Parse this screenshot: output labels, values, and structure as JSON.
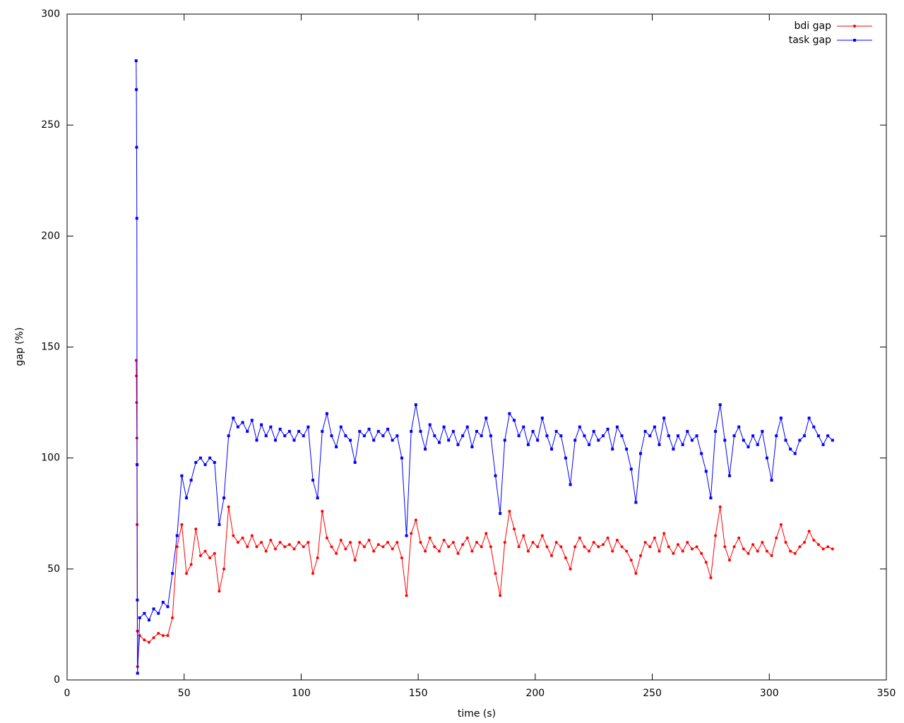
{
  "chart_data": {
    "type": "line",
    "xlabel": "time (s)",
    "ylabel": "gap (%)",
    "x": [
      29.5,
      29.6,
      29.7,
      29.8,
      29.9,
      30,
      30.1,
      31,
      33,
      35,
      37,
      39,
      41,
      43,
      45,
      47,
      49,
      51,
      53,
      55,
      57,
      59,
      61,
      63,
      65,
      67,
      69,
      71,
      73,
      75,
      77,
      79,
      81,
      83,
      85,
      87,
      89,
      91,
      93,
      95,
      97,
      99,
      101,
      103,
      105,
      107,
      109,
      111,
      113,
      115,
      117,
      119,
      121,
      123,
      125,
      127,
      129,
      131,
      133,
      135,
      137,
      139,
      141,
      143,
      145,
      147,
      149,
      151,
      153,
      155,
      157,
      159,
      161,
      163,
      165,
      167,
      169,
      171,
      173,
      175,
      177,
      179,
      181,
      183,
      185,
      187,
      189,
      191,
      193,
      195,
      197,
      199,
      201,
      203,
      205,
      207,
      209,
      211,
      213,
      215,
      217,
      219,
      221,
      223,
      225,
      227,
      229,
      231,
      233,
      235,
      237,
      239,
      241,
      243,
      245,
      247,
      249,
      251,
      253,
      255,
      257,
      259,
      261,
      263,
      265,
      267,
      269,
      271,
      273,
      275,
      277,
      279,
      281,
      283,
      285,
      287,
      289,
      291,
      293,
      295,
      297,
      299,
      301,
      303,
      305,
      307,
      309,
      311,
      313,
      315,
      317,
      319,
      321,
      323,
      325,
      327
    ],
    "series": [
      {
        "name": "bdi gap",
        "color": "#ff0000",
        "marker": "circle",
        "values": [
          144,
          137,
          125,
          109,
          70,
          22,
          6,
          20,
          18,
          17,
          19,
          21,
          20,
          20,
          28,
          60,
          70,
          48,
          52,
          68,
          56,
          58,
          55,
          57,
          40,
          50,
          78,
          65,
          62,
          64,
          60,
          65,
          60,
          62,
          58,
          63,
          59,
          62,
          60,
          61,
          59,
          62,
          60,
          62,
          48,
          55,
          76,
          64,
          60,
          57,
          63,
          59,
          62,
          54,
          62,
          60,
          63,
          58,
          61,
          60,
          62,
          59,
          62,
          55,
          38,
          66,
          72,
          62,
          58,
          64,
          60,
          58,
          63,
          60,
          62,
          57,
          61,
          64,
          58,
          62,
          60,
          66,
          60,
          48,
          38,
          62,
          76,
          68,
          60,
          65,
          58,
          62,
          60,
          65,
          60,
          56,
          62,
          60,
          55,
          50,
          60,
          64,
          60,
          58,
          62,
          60,
          61,
          64,
          58,
          63,
          60,
          58,
          54,
          48,
          56,
          62,
          60,
          64,
          58,
          66,
          60,
          57,
          61,
          58,
          62,
          59,
          60,
          57,
          53,
          46,
          65,
          78,
          60,
          54,
          60,
          64,
          59,
          57,
          61,
          58,
          62,
          58,
          56,
          64,
          70,
          62,
          58,
          57,
          60,
          62,
          67,
          63,
          61,
          59,
          60,
          59
        ]
      },
      {
        "name": "task gap",
        "color": "#0000ff",
        "marker": "square",
        "values": [
          279,
          266,
          240,
          208,
          97,
          36,
          3,
          28,
          30,
          27,
          32,
          30,
          35,
          33,
          48,
          65,
          92,
          82,
          90,
          98,
          100,
          97,
          100,
          98,
          70,
          82,
          110,
          118,
          114,
          116,
          112,
          117,
          108,
          115,
          110,
          114,
          108,
          113,
          110,
          112,
          108,
          112,
          110,
          114,
          90,
          82,
          112,
          120,
          110,
          105,
          114,
          110,
          108,
          98,
          112,
          110,
          113,
          108,
          112,
          110,
          113,
          108,
          110,
          100,
          65,
          112,
          124,
          112,
          104,
          115,
          110,
          107,
          114,
          108,
          112,
          106,
          110,
          114,
          105,
          112,
          110,
          118,
          110,
          92,
          75,
          108,
          120,
          117,
          110,
          114,
          106,
          112,
          108,
          118,
          110,
          104,
          112,
          110,
          100,
          88,
          108,
          114,
          110,
          106,
          112,
          108,
          110,
          113,
          104,
          114,
          110,
          104,
          95,
          80,
          102,
          112,
          110,
          114,
          106,
          118,
          110,
          104,
          110,
          106,
          112,
          108,
          110,
          102,
          94,
          82,
          112,
          124,
          108,
          92,
          110,
          114,
          108,
          105,
          110,
          106,
          112,
          100,
          90,
          110,
          118,
          108,
          104,
          102,
          108,
          110,
          118,
          114,
          110,
          106,
          110,
          108
        ]
      }
    ],
    "xlim": [
      0,
      350
    ],
    "xticks": [
      0,
      50,
      100,
      150,
      200,
      250,
      300,
      350
    ],
    "ylim": [
      0,
      300
    ],
    "yticks": [
      0,
      50,
      100,
      150,
      200,
      250,
      300
    ],
    "legend": "top-right"
  }
}
